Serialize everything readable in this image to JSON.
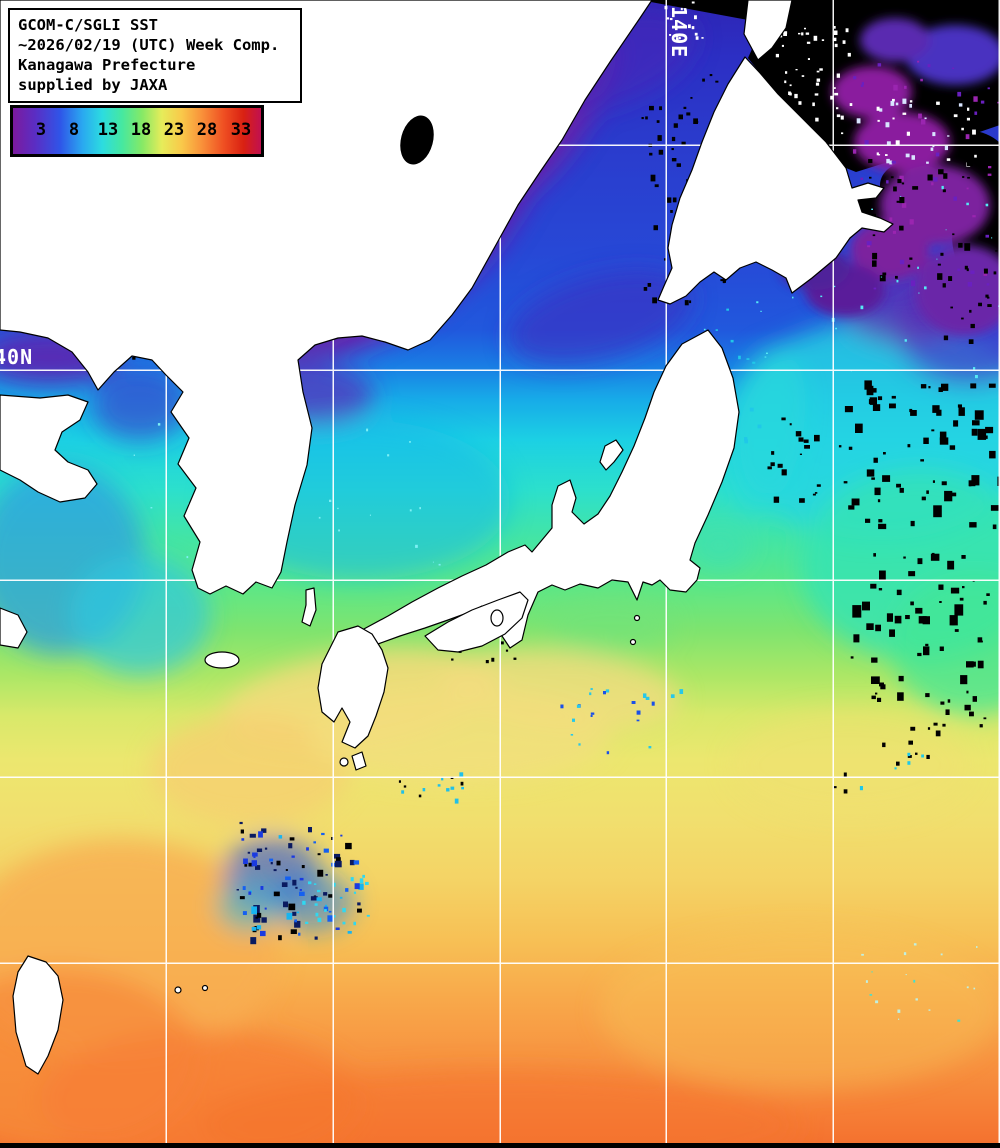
{
  "title_box": {
    "lines": [
      "GCOM-C/SGLI SST",
      "~2026/02/19 (UTC) Week Comp.",
      "Kanagawa Prefecture",
      "supplied by JAXA"
    ]
  },
  "colorbar": {
    "ticks": [
      "3",
      "8",
      "13",
      "18",
      "23",
      "28",
      "33"
    ],
    "gradient_stops": [
      "#7c1a9e",
      "#5a2ec4",
      "#2f55e8",
      "#2aa8f0",
      "#2cdce0",
      "#46e8a0",
      "#85e966",
      "#e6ec5a",
      "#f9c94a",
      "#f9923a",
      "#ef4f22",
      "#d92112",
      "#c11050"
    ]
  },
  "map": {
    "lon_label": "140E",
    "lat_label": "40N",
    "land_color": "#ffffff",
    "no_data_color": "#000000",
    "grid_color": "#ffffff",
    "sst_scale": {
      "coldest": "#2e25b5",
      "warmest": "#f4702e"
    }
  }
}
